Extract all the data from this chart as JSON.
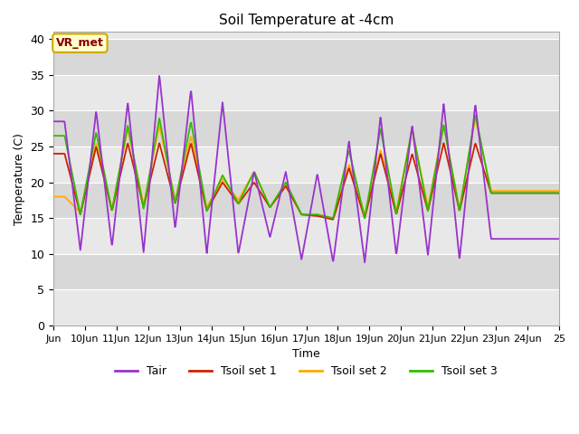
{
  "title": "Soil Temperature at -4cm",
  "xlabel": "Time",
  "ylabel": "Temperature (C)",
  "ylim": [
    0,
    41
  ],
  "yticks": [
    0,
    5,
    10,
    15,
    20,
    25,
    30,
    35,
    40
  ],
  "colors": {
    "Tair": "#9933cc",
    "Tsoil1": "#cc2200",
    "Tsoil2": "#ffaa00",
    "Tsoil3": "#33bb00"
  },
  "legend_labels": [
    "Tair",
    "Tsoil set 1",
    "Tsoil set 2",
    "Tsoil set 3"
  ],
  "annotation_text": "VR_met",
  "annotation_color": "#880000",
  "annotation_bg": "#ffffcc",
  "annotation_edge": "#ccaa00",
  "bg_color": "#e8e8e8",
  "band_colors": [
    "#e8e8e8",
    "#d8d8d8"
  ],
  "x_start": 9,
  "x_end": 25,
  "xtick_positions": [
    9,
    10,
    11,
    12,
    13,
    14,
    15,
    16,
    17,
    18,
    19,
    20,
    21,
    22,
    23,
    24,
    25
  ],
  "xtick_labels": [
    "Jun",
    "10Jun",
    "11Jun",
    "12Jun",
    "13Jun",
    "14Jun",
    "15Jun",
    "16Jun",
    "17Jun",
    "18Jun",
    "19Jun",
    "20Jun",
    "21Jun",
    "22Jun",
    "23Jun",
    "24Jun",
    "25"
  ],
  "tair_peaks": [
    28.5,
    10.5,
    30.0,
    11.0,
    31.2,
    10.2,
    35.0,
    13.5,
    33.0,
    10.0,
    31.2,
    10.0,
    21.5,
    12.3,
    21.5,
    9.2,
    21.2,
    8.8,
    25.8,
    8.8,
    29.2,
    9.8,
    28.0,
    9.8,
    31.0,
    9.2,
    31.0,
    12.1
  ],
  "tsoil1_peaks": [
    24.0,
    15.5,
    25.0,
    16.0,
    25.5,
    16.5,
    25.5,
    17.0,
    25.5,
    16.0,
    20.0,
    17.0,
    20.0,
    16.5,
    19.5,
    15.5,
    15.3,
    14.8,
    22.0,
    15.0,
    24.0,
    15.5,
    24.0,
    16.0,
    25.5,
    16.0,
    25.5,
    18.5
  ],
  "tsoil2_peaks": [
    18.0,
    15.8,
    25.5,
    16.2,
    27.5,
    16.8,
    28.0,
    17.5,
    26.5,
    16.5,
    20.5,
    17.5,
    21.5,
    16.5,
    19.5,
    15.5,
    15.5,
    15.0,
    22.5,
    15.5,
    24.5,
    16.0,
    27.5,
    16.5,
    28.0,
    16.2,
    29.0,
    18.8
  ],
  "tsoil3_peaks": [
    26.5,
    15.5,
    27.0,
    16.0,
    28.0,
    16.3,
    29.0,
    17.0,
    28.5,
    16.0,
    21.0,
    17.0,
    21.5,
    16.5,
    20.0,
    15.5,
    15.5,
    15.0,
    24.5,
    15.0,
    27.5,
    15.5,
    27.5,
    16.0,
    28.0,
    16.0,
    29.5,
    18.5
  ]
}
